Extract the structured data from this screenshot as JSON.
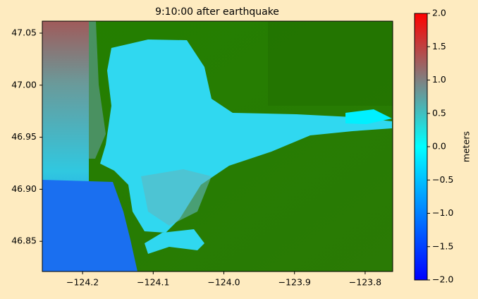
{
  "chart_data": {
    "type": "image_map",
    "title": "9:10:00 after earthquake",
    "xlim": [
      -124.257,
      -123.761
    ],
    "ylim": [
      46.821,
      47.0615
    ],
    "xticks": [
      {
        "value": -124.2,
        "label": "−124.2"
      },
      {
        "value": -124.1,
        "label": "−124.1"
      },
      {
        "value": -124.0,
        "label": "−124.0"
      },
      {
        "value": -123.9,
        "label": "−123.9"
      },
      {
        "value": -123.8,
        "label": "−123.8"
      }
    ],
    "yticks": [
      46.85,
      {
        "value": 46.9,
        "label": "46.90"
      },
      46.95,
      {
        "value": 47.0,
        "label": "47.00"
      },
      47.05
    ],
    "colorbar": {
      "label": "meters",
      "lim": [
        -2,
        2
      ],
      "ticks": [
        {
          "value": -2,
          "label": "−2.0"
        },
        {
          "value": -1.5,
          "label": "−1.5"
        },
        {
          "value": -1,
          "label": "−1.0"
        },
        {
          "value": -0.5,
          "label": "−0.5"
        },
        {
          "value": 0,
          "label": "0.0"
        },
        {
          "value": 0.5,
          "label": "0.5"
        },
        {
          "value": 1,
          "label": "1.0"
        },
        {
          "value": 1.5,
          "label": "1.5"
        },
        {
          "value": 2,
          "label": "2.0"
        }
      ],
      "colormap": [
        {
          "value": -2,
          "color": "#0000ff"
        },
        {
          "value": 0,
          "color": "#00ffff"
        },
        {
          "value": 1,
          "color": "#808080"
        },
        {
          "value": 2,
          "color": "#ff0000"
        }
      ]
    }
  }
}
